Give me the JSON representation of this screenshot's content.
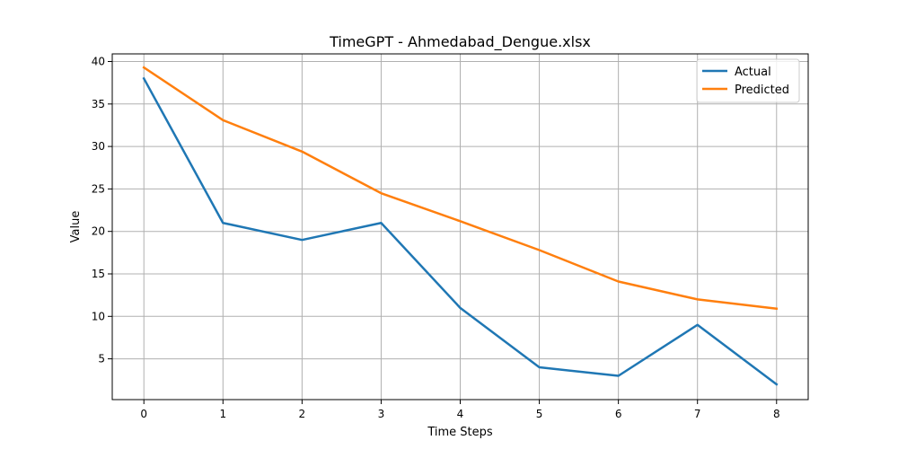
{
  "chart_data": {
    "type": "line",
    "title": "TimeGPT - Ahmedabad_Dengue.xlsx",
    "xlabel": "Time Steps",
    "ylabel": "Value",
    "x": [
      0,
      1,
      2,
      3,
      4,
      5,
      6,
      7,
      8
    ],
    "xticks": [
      "0",
      "1",
      "2",
      "3",
      "4",
      "5",
      "6",
      "7",
      "8"
    ],
    "yticks": [
      "5",
      "10",
      "15",
      "20",
      "25",
      "30",
      "35",
      "40"
    ],
    "xlim": [
      -0.4,
      8.4
    ],
    "ylim": [
      0.2,
      40.9
    ],
    "grid": true,
    "legend_position": "top-right",
    "series": [
      {
        "name": "Actual",
        "color": "#1f77b4",
        "values": [
          38,
          21,
          19,
          21,
          11,
          4,
          3,
          9,
          2
        ]
      },
      {
        "name": "Predicted",
        "color": "#ff7f0e",
        "values": [
          39.3,
          33.1,
          29.4,
          24.5,
          21.2,
          17.8,
          14.1,
          12.0,
          10.9
        ]
      }
    ]
  }
}
